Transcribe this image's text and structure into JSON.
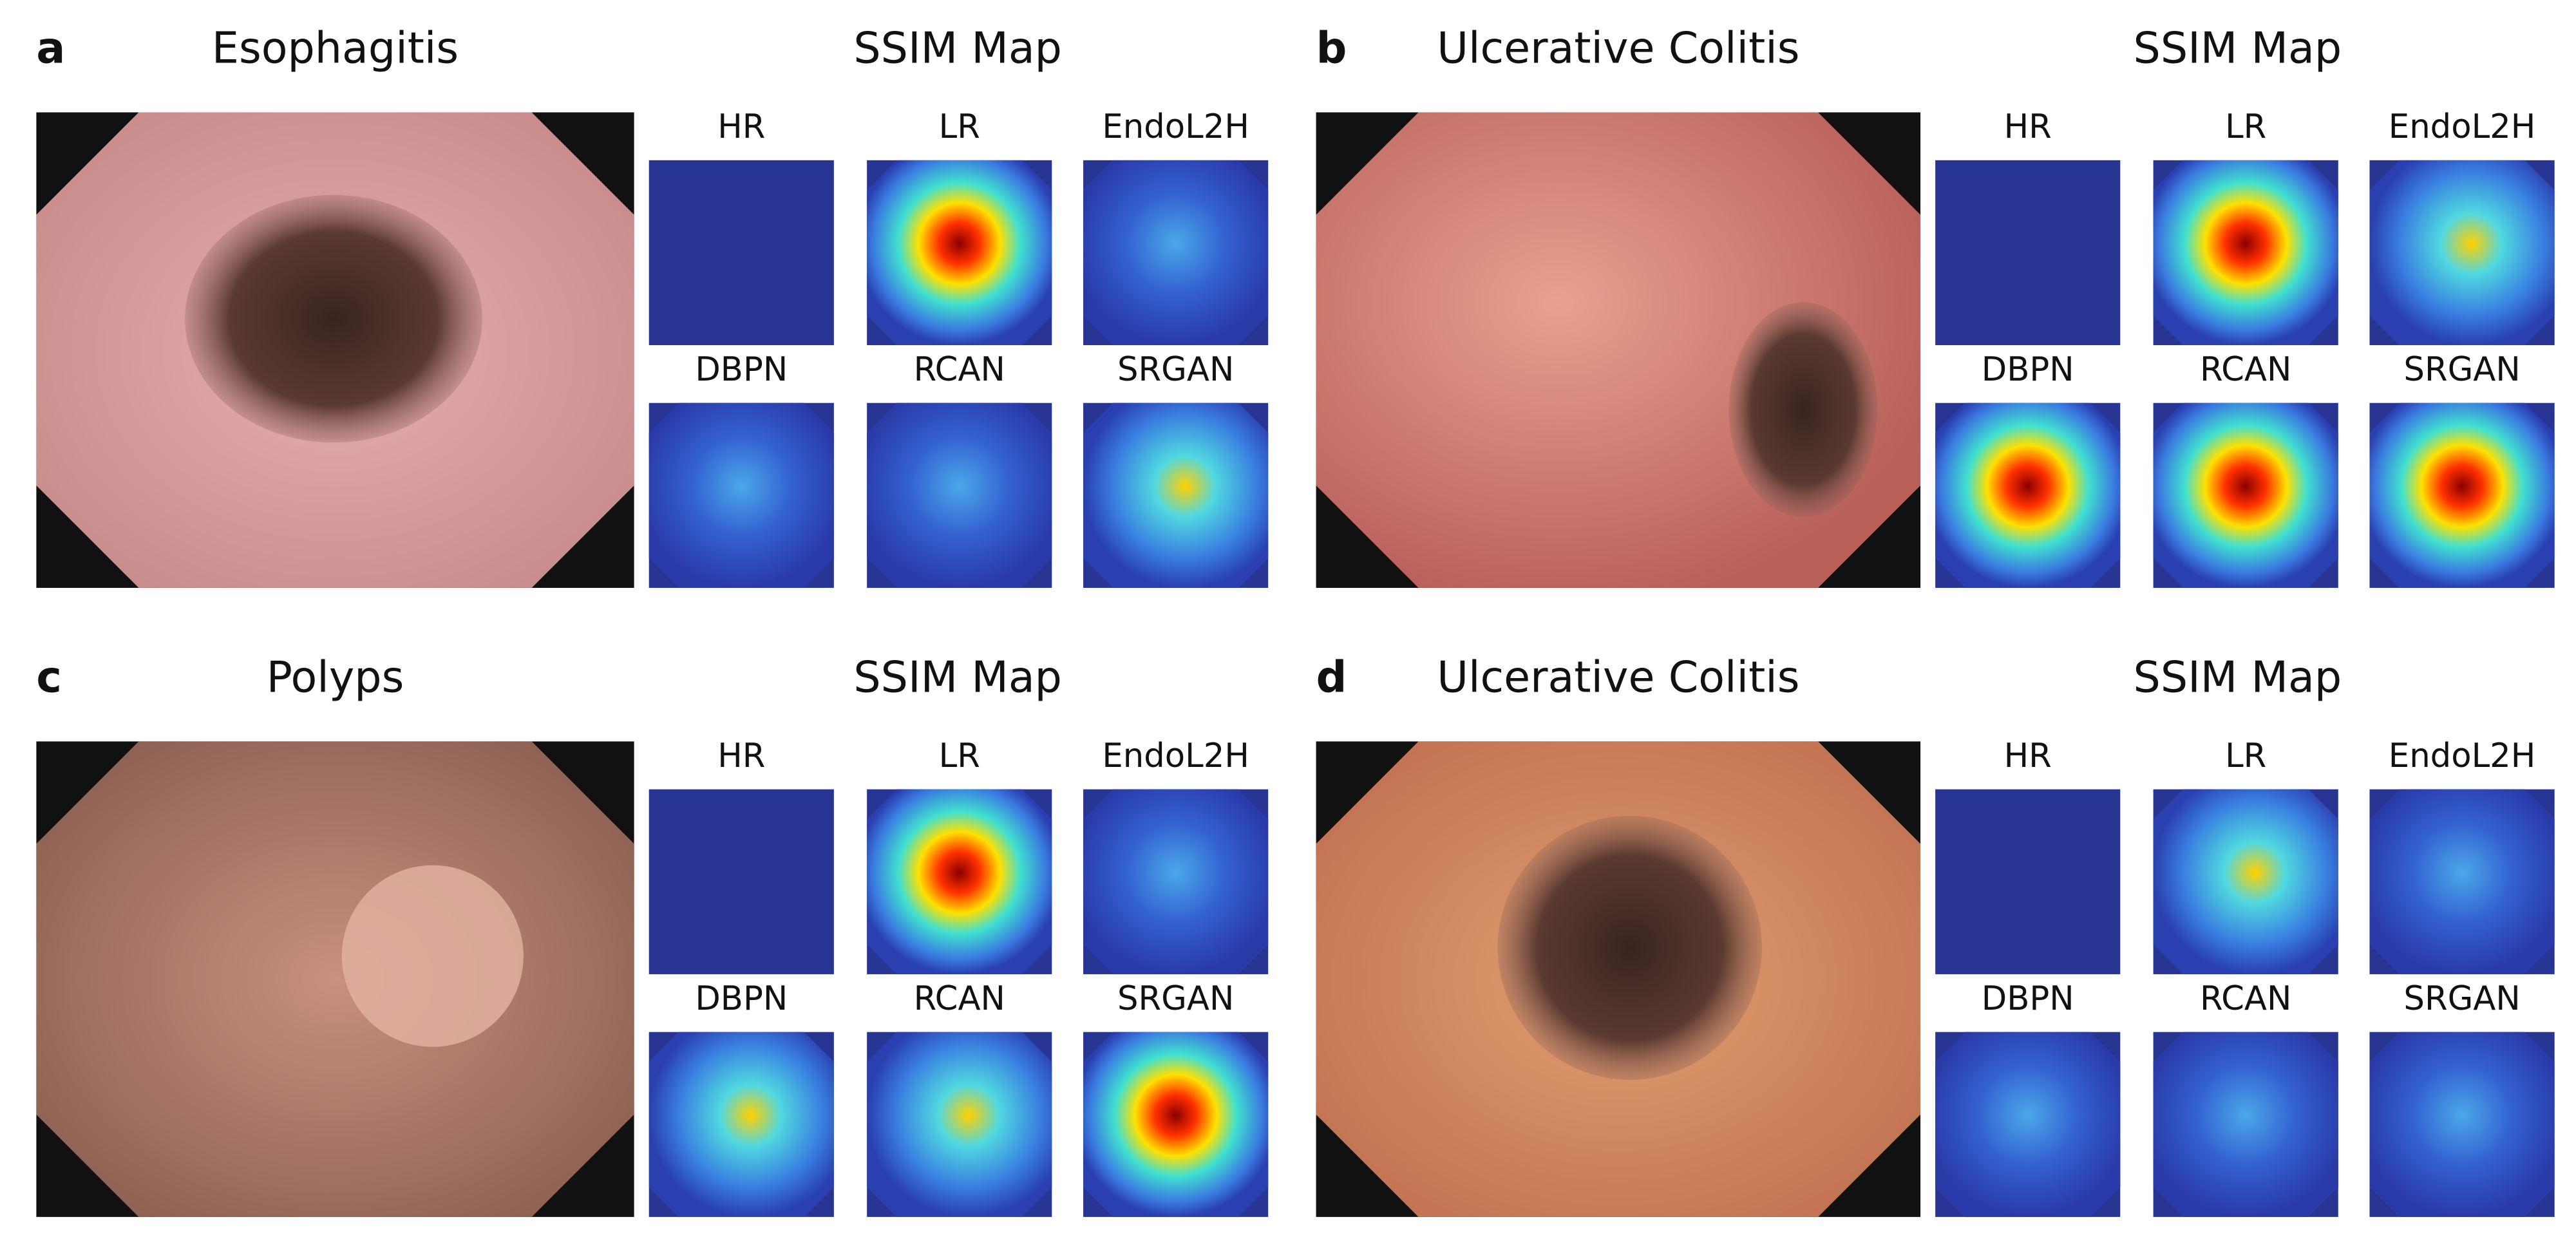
{
  "panels": [
    {
      "letter": "a",
      "title": "Esophagitis",
      "map_title": "SSIM Map",
      "maps": [
        "HR",
        "LR",
        "EndoL2H",
        "DBPN",
        "RCAN",
        "SRGAN"
      ]
    },
    {
      "letter": "b",
      "title": "Ulcerative Colitis",
      "map_title": "SSIM Map",
      "maps": [
        "HR",
        "LR",
        "EndoL2H",
        "DBPN",
        "RCAN",
        "SRGAN"
      ]
    },
    {
      "letter": "c",
      "title": "Polyps",
      "map_title": "SSIM Map",
      "maps": [
        "HR",
        "LR",
        "EndoL2H",
        "DBPN",
        "RCAN",
        "SRGAN"
      ]
    },
    {
      "letter": "d",
      "title": "Ulcerative Colitis",
      "map_title": "SSIM Map",
      "maps": [
        "HR",
        "LR",
        "EndoL2H",
        "DBPN",
        "RCAN",
        "SRGAN"
      ]
    }
  ]
}
